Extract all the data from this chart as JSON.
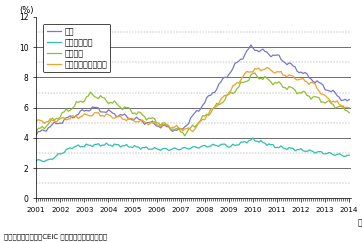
{
  "ylabel": "(%)",
  "xlabel": "（年月）",
  "source": "資料：米国労働省、CEIC データベースから作成。",
  "ylim": [
    0,
    12
  ],
  "yticks": [
    0,
    2,
    4,
    6,
    8,
    10,
    12
  ],
  "series_names": [
    "全米",
    "ノースダコタ",
    "テキサス",
    "ウェストバージニア"
  ],
  "series_colors": [
    "#7878c8",
    "#30c0a8",
    "#90c030",
    "#f0a028"
  ],
  "grid_solid": [
    2,
    4,
    6,
    8,
    10
  ],
  "grid_dashed": [
    1,
    3,
    5,
    7,
    9,
    11
  ],
  "background": "#ffffff",
  "linewidth": 0.9,
  "xlim": [
    2001.0,
    2014.08
  ],
  "xtick_years": [
    2001,
    2002,
    2003,
    2004,
    2005,
    2006,
    2007,
    2008,
    2009,
    2010,
    2011,
    2012,
    2013,
    2014
  ]
}
